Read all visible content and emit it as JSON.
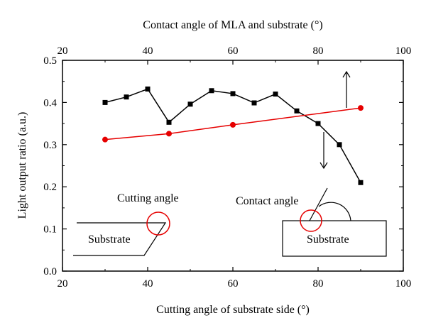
{
  "chart_data": {
    "type": "line",
    "xlabel": "Cutting angle of substrate side (°)",
    "x2label": "Contact angle of MLA and substrate (°)",
    "ylabel": "Light output ratio (a.u.)",
    "xlim": [
      20,
      100
    ],
    "x2lim": [
      20,
      100
    ],
    "ylim": [
      0,
      0.5
    ],
    "x_ticks": [
      "20",
      "40",
      "60",
      "80",
      "100"
    ],
    "x2_ticks": [
      "20",
      "40",
      "60",
      "80",
      "100"
    ],
    "y_ticks": [
      "0.0",
      "0.1",
      "0.2",
      "0.3",
      "0.4",
      "0.5"
    ],
    "grid": false,
    "series": [
      {
        "axis": "top",
        "color": "#000000",
        "marker": "square",
        "x": [
          30,
          35,
          40,
          45,
          50,
          55,
          60,
          65,
          70,
          75,
          80,
          85,
          90
        ],
        "y": [
          0.4,
          0.413,
          0.432,
          0.353,
          0.396,
          0.428,
          0.421,
          0.399,
          0.42,
          0.38,
          0.35,
          0.3,
          0.21
        ]
      },
      {
        "axis": "bottom",
        "color": "#e60000",
        "marker": "circle",
        "x": [
          30,
          45,
          60,
          90
        ],
        "y": [
          0.312,
          0.326,
          0.347,
          0.387
        ]
      }
    ],
    "annotations": {
      "cutting_angle": "Cutting angle",
      "contact_angle": "Contact angle",
      "substrate_left": "Substrate",
      "substrate_right": "Substrate"
    }
  }
}
